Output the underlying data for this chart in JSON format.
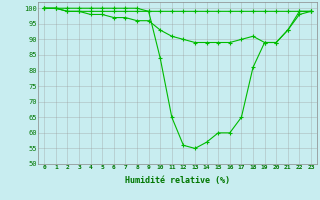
{
  "hours": [
    0,
    1,
    2,
    3,
    4,
    5,
    6,
    7,
    8,
    9,
    10,
    11,
    12,
    13,
    14,
    15,
    16,
    17,
    18,
    19,
    20,
    21,
    22,
    23
  ],
  "line1": [
    100,
    100,
    100,
    100,
    100,
    100,
    100,
    100,
    100,
    99,
    99,
    99,
    99,
    99,
    99,
    99,
    99,
    99,
    99,
    99,
    99,
    99,
    99,
    99
  ],
  "line2": [
    100,
    100,
    99,
    99,
    98,
    98,
    97,
    97,
    96,
    96,
    93,
    91,
    90,
    89,
    89,
    89,
    89,
    90,
    91,
    89,
    89,
    93,
    98,
    99
  ],
  "line3": [
    100,
    100,
    99,
    99,
    99,
    99,
    99,
    99,
    99,
    99,
    84,
    65,
    56,
    55,
    57,
    60,
    60,
    65,
    81,
    89,
    89,
    93,
    99,
    99
  ],
  "line_color": "#00BB00",
  "bg_color": "#C8EDF0",
  "grid_color": "#999999",
  "xlabel": "Humidité relative (%)",
  "ylim": [
    50,
    102
  ],
  "yticks": [
    50,
    55,
    60,
    65,
    70,
    75,
    80,
    85,
    90,
    95,
    100
  ],
  "marker": "+",
  "marker_size": 3,
  "linewidth": 0.8,
  "figwidth": 3.2,
  "figheight": 2.0,
  "dpi": 100
}
